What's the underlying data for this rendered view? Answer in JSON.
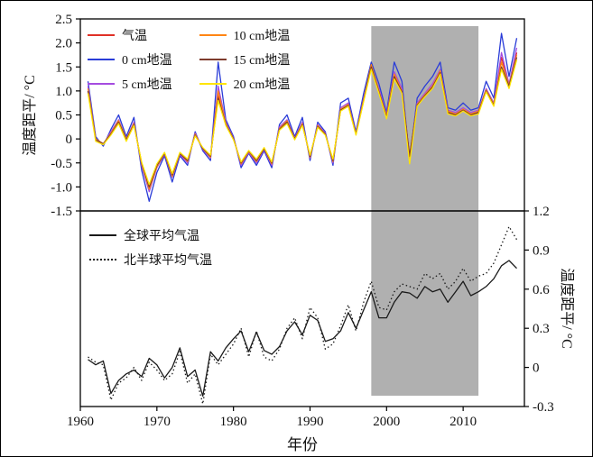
{
  "figure": {
    "xlabel": "年份",
    "x_range": [
      1960,
      2018
    ],
    "x_tick_years": [
      1960,
      1970,
      1980,
      1990,
      2000,
      2010
    ],
    "x_tick_labels": [
      "1960",
      "1970",
      "1980",
      "1990",
      "2000",
      "2010"
    ],
    "highlight_band": {
      "year_start": 1998,
      "year_end": 2012,
      "color": "#b0b0b0"
    },
    "axis_color": "#000000",
    "text_color": "#111111"
  },
  "chart_data": [
    {
      "type": "line",
      "panel": "top",
      "title": "",
      "xlabel": "年份",
      "ylabel": "温度距平/ °C",
      "ylim": [
        -1.5,
        2.5
      ],
      "ytick_values": [
        -1.5,
        -1.0,
        -0.5,
        0,
        0.5,
        1.0,
        1.5,
        2.0,
        2.5
      ],
      "ytick_labels": [
        "-1.5",
        "-1.0",
        "-0.5",
        "0",
        "0.5",
        "1.0",
        "1.5",
        "2.0",
        "2.5"
      ],
      "legend_position": "top-left",
      "x": [
        1961,
        1962,
        1963,
        1964,
        1965,
        1966,
        1967,
        1968,
        1969,
        1970,
        1971,
        1972,
        1973,
        1974,
        1975,
        1976,
        1977,
        1978,
        1979,
        1980,
        1981,
        1982,
        1983,
        1984,
        1985,
        1986,
        1987,
        1988,
        1989,
        1990,
        1991,
        1992,
        1993,
        1994,
        1995,
        1996,
        1997,
        1998,
        1999,
        2000,
        2001,
        2002,
        2003,
        2004,
        2005,
        2006,
        2007,
        2008,
        2009,
        2010,
        2011,
        2012,
        2013,
        2014,
        2015,
        2016,
        2017
      ],
      "series": [
        {
          "name": "气温",
          "color": "#e03127",
          "style": "solid",
          "values": [
            1.0,
            0.0,
            -0.1,
            0.1,
            0.35,
            0.0,
            0.3,
            -0.5,
            -1.0,
            -0.55,
            -0.3,
            -0.75,
            -0.3,
            -0.45,
            0.1,
            -0.2,
            -0.35,
            0.9,
            0.3,
            0.0,
            -0.5,
            -0.25,
            -0.45,
            -0.2,
            -0.5,
            0.2,
            0.35,
            0.0,
            0.3,
            -0.35,
            0.25,
            0.1,
            -0.45,
            0.6,
            0.7,
            0.1,
            0.8,
            1.5,
            1.0,
            0.45,
            1.3,
            1.0,
            -0.35,
            0.7,
            0.9,
            1.1,
            1.4,
            0.55,
            0.5,
            0.6,
            0.5,
            0.55,
            1.0,
            0.7,
            1.7,
            1.1,
            1.8
          ]
        },
        {
          "name": "0 cm地温",
          "color": "#2a3cd8",
          "style": "solid",
          "values": [
            1.2,
            0.05,
            -0.15,
            0.2,
            0.5,
            0.05,
            0.45,
            -0.65,
            -1.3,
            -0.7,
            -0.35,
            -0.9,
            -0.35,
            -0.55,
            0.15,
            -0.25,
            -0.45,
            1.6,
            0.4,
            0.05,
            -0.6,
            -0.3,
            -0.55,
            -0.25,
            -0.6,
            0.3,
            0.5,
            0.05,
            0.45,
            -0.45,
            0.35,
            0.15,
            -0.55,
            0.75,
            0.85,
            0.15,
            0.95,
            1.6,
            1.15,
            0.55,
            1.6,
            1.2,
            -0.45,
            0.85,
            1.1,
            1.3,
            1.6,
            0.65,
            0.6,
            0.75,
            0.6,
            0.65,
            1.2,
            0.85,
            2.2,
            1.3,
            2.1
          ]
        },
        {
          "name": "5 cm地温",
          "color": "#a54ce0",
          "style": "solid",
          "values": [
            1.1,
            0.0,
            -0.12,
            0.15,
            0.4,
            0.0,
            0.35,
            -0.55,
            -1.1,
            -0.6,
            -0.32,
            -0.8,
            -0.32,
            -0.5,
            0.12,
            -0.22,
            -0.4,
            1.1,
            0.35,
            0.02,
            -0.55,
            -0.28,
            -0.5,
            -0.22,
            -0.55,
            0.25,
            0.4,
            0.02,
            0.35,
            -0.4,
            0.3,
            0.12,
            -0.5,
            0.65,
            0.75,
            0.12,
            0.85,
            1.5,
            1.05,
            0.5,
            1.4,
            1.05,
            -0.4,
            0.75,
            0.95,
            1.15,
            1.45,
            0.6,
            0.55,
            0.65,
            0.55,
            0.6,
            1.05,
            0.75,
            1.8,
            1.15,
            1.9
          ]
        },
        {
          "name": "10 cm地温",
          "color": "#ff8514",
          "style": "solid",
          "values": [
            1.05,
            0.0,
            -0.1,
            0.12,
            0.38,
            0.0,
            0.32,
            -0.52,
            -1.05,
            -0.58,
            -0.3,
            -0.78,
            -0.3,
            -0.47,
            0.1,
            -0.2,
            -0.38,
            1.0,
            0.32,
            0.0,
            -0.52,
            -0.26,
            -0.47,
            -0.2,
            -0.52,
            0.22,
            0.38,
            0.0,
            0.32,
            -0.38,
            0.28,
            0.1,
            -0.47,
            0.62,
            0.72,
            0.1,
            0.82,
            1.55,
            1.0,
            0.48,
            1.35,
            1.0,
            -0.38,
            0.72,
            0.92,
            1.1,
            1.42,
            0.58,
            0.52,
            0.62,
            0.52,
            0.58,
            1.02,
            0.72,
            1.6,
            1.12,
            1.75
          ]
        },
        {
          "name": "15 cm地温",
          "color": "#7e3b2c",
          "style": "solid",
          "values": [
            1.0,
            -0.02,
            -0.1,
            0.1,
            0.35,
            -0.02,
            0.3,
            -0.5,
            -1.0,
            -0.55,
            -0.3,
            -0.75,
            -0.3,
            -0.45,
            0.08,
            -0.2,
            -0.36,
            0.85,
            0.3,
            0.0,
            -0.5,
            -0.25,
            -0.45,
            -0.2,
            -0.5,
            0.2,
            0.35,
            0.0,
            0.3,
            -0.36,
            0.26,
            0.1,
            -0.45,
            0.6,
            0.7,
            0.1,
            0.8,
            1.5,
            0.98,
            0.45,
            1.3,
            0.98,
            -0.36,
            0.7,
            0.9,
            1.08,
            1.38,
            0.55,
            0.5,
            0.6,
            0.5,
            0.55,
            1.0,
            0.7,
            1.5,
            1.1,
            1.7
          ]
        },
        {
          "name": "20 cm地温",
          "color": "#ffe500",
          "style": "solid",
          "values": [
            0.95,
            -0.05,
            -0.12,
            0.08,
            0.32,
            -0.05,
            0.28,
            -0.48,
            -0.95,
            -0.52,
            -0.28,
            -0.72,
            -0.28,
            -0.42,
            0.06,
            -0.18,
            -0.34,
            0.8,
            0.28,
            -0.02,
            -0.48,
            -0.24,
            -0.42,
            -0.18,
            -0.48,
            0.18,
            0.32,
            -0.02,
            0.28,
            -0.34,
            0.24,
            0.08,
            -0.42,
            0.58,
            0.68,
            0.08,
            0.78,
            1.45,
            0.95,
            0.42,
            1.25,
            0.95,
            -0.52,
            0.68,
            0.88,
            1.05,
            1.35,
            0.52,
            0.48,
            0.58,
            0.48,
            0.52,
            0.98,
            0.68,
            1.45,
            1.05,
            1.65
          ]
        }
      ]
    },
    {
      "type": "line",
      "panel": "bottom",
      "title": "",
      "xlabel": "年份",
      "ylabel": "温度距平/ °C",
      "ylim": [
        -0.3,
        1.2
      ],
      "ytick_values": [
        -0.3,
        0,
        0.3,
        0.6,
        0.9,
        1.2
      ],
      "ytick_labels": [
        "-0.3",
        "0",
        "0.3",
        "0.6",
        "0.9",
        "1.2"
      ],
      "legend_position": "top-left",
      "x": [
        1961,
        1962,
        1963,
        1964,
        1965,
        1966,
        1967,
        1968,
        1969,
        1970,
        1971,
        1972,
        1973,
        1974,
        1975,
        1976,
        1977,
        1978,
        1979,
        1980,
        1981,
        1982,
        1983,
        1984,
        1985,
        1986,
        1987,
        1988,
        1989,
        1990,
        1991,
        1992,
        1993,
        1994,
        1995,
        1996,
        1997,
        1998,
        1999,
        2000,
        2001,
        2002,
        2003,
        2004,
        2005,
        2006,
        2007,
        2008,
        2009,
        2010,
        2011,
        2012,
        2013,
        2014,
        2015,
        2016,
        2017
      ],
      "series": [
        {
          "name": "全球平均气温",
          "color": "#1a1a1a",
          "style": "solid",
          "values": [
            0.06,
            0.02,
            0.05,
            -0.2,
            -0.1,
            -0.05,
            -0.02,
            -0.07,
            0.07,
            0.02,
            -0.08,
            0.0,
            0.15,
            -0.07,
            -0.02,
            -0.22,
            0.12,
            0.05,
            0.15,
            0.22,
            0.28,
            0.12,
            0.27,
            0.13,
            0.1,
            0.16,
            0.28,
            0.35,
            0.25,
            0.4,
            0.36,
            0.2,
            0.22,
            0.28,
            0.42,
            0.3,
            0.44,
            0.58,
            0.38,
            0.38,
            0.5,
            0.58,
            0.57,
            0.53,
            0.62,
            0.58,
            0.6,
            0.5,
            0.58,
            0.66,
            0.55,
            0.58,
            0.62,
            0.68,
            0.78,
            0.82,
            0.76
          ]
        },
        {
          "name": "北半球平均气温",
          "color": "#1a1a1a",
          "style": "dotted",
          "values": [
            0.08,
            0.04,
            0.02,
            -0.25,
            -0.12,
            -0.08,
            0.0,
            -0.1,
            0.04,
            -0.02,
            -0.1,
            -0.05,
            0.12,
            -0.12,
            -0.05,
            -0.28,
            0.1,
            0.02,
            0.1,
            0.18,
            0.3,
            0.08,
            0.28,
            0.08,
            0.05,
            0.14,
            0.3,
            0.38,
            0.22,
            0.46,
            0.38,
            0.14,
            0.18,
            0.32,
            0.48,
            0.28,
            0.5,
            0.66,
            0.46,
            0.44,
            0.58,
            0.64,
            0.62,
            0.6,
            0.72,
            0.68,
            0.72,
            0.6,
            0.66,
            0.76,
            0.66,
            0.7,
            0.72,
            0.8,
            0.94,
            1.08,
            0.98
          ]
        }
      ]
    }
  ]
}
